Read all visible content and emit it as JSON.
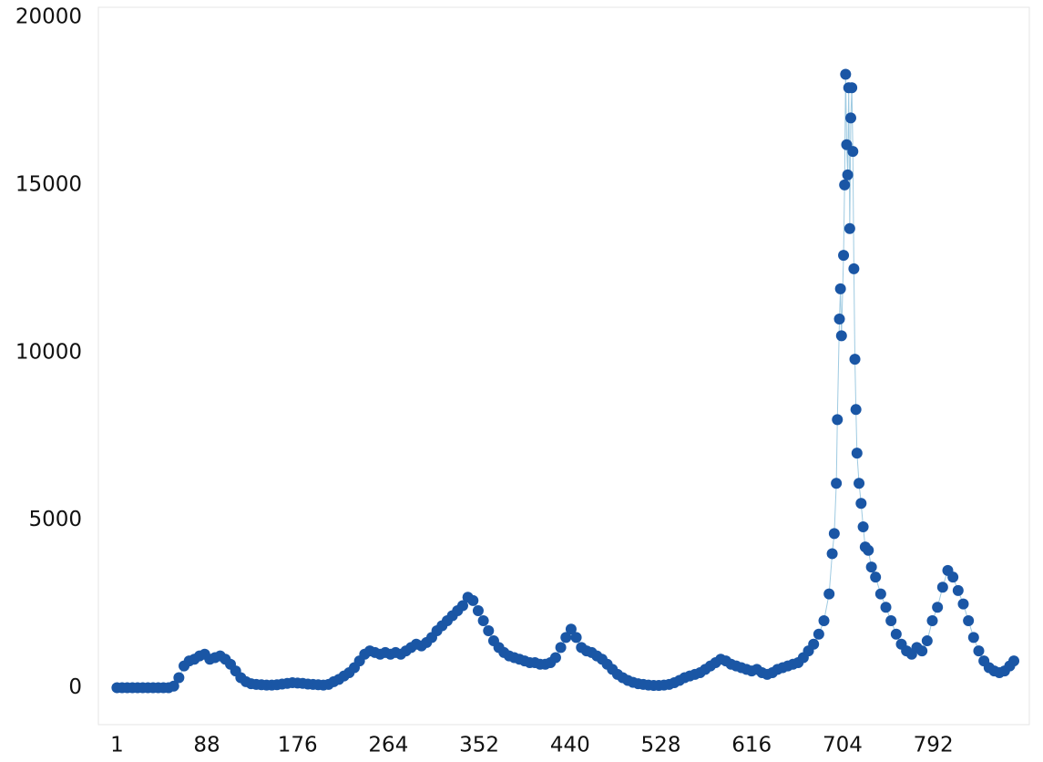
{
  "chart_data": {
    "type": "scatter",
    "x": [
      1,
      6,
      11,
      16,
      21,
      26,
      31,
      36,
      41,
      46,
      51,
      56,
      61,
      66,
      71,
      76,
      81,
      86,
      91,
      96,
      101,
      106,
      111,
      116,
      121,
      126,
      131,
      136,
      141,
      146,
      151,
      156,
      161,
      166,
      171,
      176,
      181,
      186,
      191,
      196,
      201,
      206,
      211,
      216,
      221,
      226,
      231,
      236,
      241,
      246,
      251,
      256,
      261,
      266,
      271,
      276,
      281,
      286,
      291,
      296,
      301,
      306,
      311,
      316,
      321,
      326,
      331,
      336,
      341,
      346,
      351,
      356,
      361,
      366,
      371,
      376,
      381,
      386,
      391,
      396,
      401,
      406,
      411,
      416,
      421,
      426,
      431,
      436,
      441,
      446,
      451,
      456,
      461,
      466,
      471,
      476,
      481,
      486,
      491,
      496,
      501,
      506,
      511,
      516,
      521,
      526,
      531,
      536,
      541,
      546,
      551,
      556,
      561,
      566,
      571,
      576,
      581,
      586,
      591,
      596,
      601,
      606,
      611,
      616,
      621,
      626,
      631,
      636,
      641,
      646,
      651,
      656,
      661,
      666,
      671,
      676,
      681,
      686,
      691,
      694,
      696,
      698,
      699,
      701,
      702,
      703,
      705,
      706,
      707,
      708,
      709,
      710,
      711,
      712,
      713,
      714,
      715,
      716,
      717,
      718,
      720,
      722,
      724,
      726,
      729,
      732,
      736,
      741,
      746,
      751,
      756,
      761,
      766,
      771,
      776,
      781,
      786,
      791,
      796,
      801,
      806,
      811,
      816,
      821,
      826,
      831,
      836,
      841,
      846,
      851,
      856,
      861,
      866,
      870
    ],
    "values": [
      0,
      0,
      0,
      0,
      0,
      0,
      0,
      0,
      0,
      0,
      0,
      50,
      300,
      650,
      800,
      850,
      950,
      1000,
      850,
      900,
      950,
      850,
      700,
      500,
      300,
      180,
      120,
      100,
      90,
      80,
      80,
      90,
      110,
      130,
      150,
      140,
      130,
      110,
      100,
      90,
      80,
      100,
      180,
      250,
      350,
      450,
      600,
      800,
      1000,
      1100,
      1050,
      1000,
      1050,
      1000,
      1050,
      1000,
      1100,
      1200,
      1300,
      1250,
      1350,
      1500,
      1700,
      1850,
      2000,
      2150,
      2300,
      2450,
      2700,
      2600,
      2300,
      2000,
      1700,
      1400,
      1200,
      1050,
      950,
      900,
      850,
      800,
      750,
      750,
      700,
      700,
      750,
      900,
      1200,
      1500,
      1750,
      1500,
      1200,
      1100,
      1050,
      950,
      850,
      700,
      550,
      400,
      300,
      220,
      160,
      120,
      100,
      80,
      70,
      70,
      80,
      100,
      150,
      220,
      300,
      350,
      400,
      450,
      550,
      650,
      750,
      850,
      800,
      700,
      650,
      600,
      550,
      500,
      550,
      450,
      400,
      450,
      550,
      600,
      650,
      700,
      750,
      900,
      1100,
      1300,
      1600,
      2000,
      2800,
      4000,
      4600,
      6100,
      8000,
      11000,
      11900,
      10500,
      12900,
      15000,
      18300,
      16200,
      15300,
      17900,
      13700,
      17000,
      17900,
      16000,
      12500,
      9800,
      8300,
      7000,
      6100,
      5500,
      4800,
      4200,
      4100,
      3600,
      3300,
      2800,
      2400,
      2000,
      1600,
      1300,
      1100,
      1000,
      1200,
      1100,
      1400,
      2000,
      2400,
      3000,
      3500,
      3300,
      2900,
      2500,
      2000,
      1500,
      1100,
      800,
      600,
      500,
      450,
      500,
      650,
      800
    ],
    "color": "#1a56a5",
    "line_color": "#9ecae1",
    "xlim": [
      -17,
      885
    ],
    "xticks": [
      1,
      88,
      176,
      264,
      352,
      440,
      528,
      616,
      704,
      792
    ],
    "ylim": [
      -1100,
      20300
    ],
    "yticks": [
      0,
      5000,
      10000,
      15000,
      20000
    ]
  }
}
